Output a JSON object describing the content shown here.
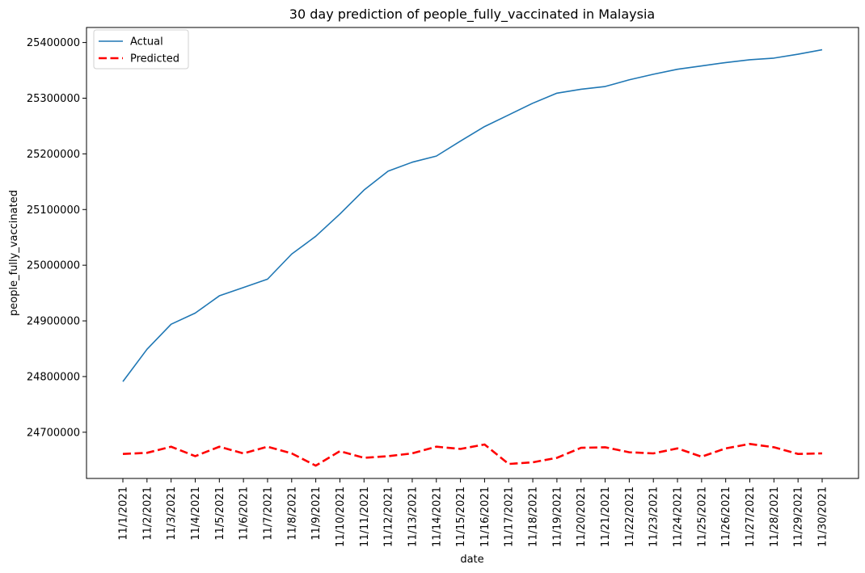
{
  "chart_data": {
    "type": "line",
    "title": "30 day prediction of people_fully_vaccinated in Malaysia",
    "xlabel": "date",
    "ylabel": "people_fully_vaccinated",
    "categories": [
      "11/1/2021",
      "11/2/2021",
      "11/3/2021",
      "11/4/2021",
      "11/5/2021",
      "11/6/2021",
      "11/7/2021",
      "11/8/2021",
      "11/9/2021",
      "11/10/2021",
      "11/11/2021",
      "11/12/2021",
      "11/13/2021",
      "11/14/2021",
      "11/15/2021",
      "11/16/2021",
      "11/17/2021",
      "11/18/2021",
      "11/19/2021",
      "11/20/2021",
      "11/21/2021",
      "11/22/2021",
      "11/23/2021",
      "11/24/2021",
      "11/25/2021",
      "11/26/2021",
      "11/27/2021",
      "11/28/2021",
      "11/29/2021",
      "11/30/2021"
    ],
    "yticks": [
      "24700000",
      "24800000",
      "24900000",
      "25000000",
      "25100000",
      "25200000",
      "25300000",
      "25400000"
    ],
    "ylim": [
      24617000,
      25427000
    ],
    "grid": false,
    "legend_position": "top-left",
    "series": [
      {
        "name": "Actual",
        "color": "#1f77b4",
        "style": "solid",
        "values": [
          24791000,
          24849000,
          24894000,
          24914000,
          24945000,
          24960000,
          24975000,
          25020000,
          25052000,
          25092000,
          25135000,
          25169000,
          25185000,
          25196000,
          25223000,
          25249000,
          25270000,
          25291000,
          25309000,
          25316000,
          25321000,
          25333000,
          25343000,
          25352000,
          25358000,
          25364000,
          25369000,
          25372000,
          25379000,
          25387000
        ]
      },
      {
        "name": "Predicted",
        "color": "#ff0000",
        "style": "dashed",
        "values": [
          24661000,
          24663000,
          24674000,
          24657000,
          24674000,
          24662000,
          24674000,
          24662000,
          24640000,
          24666000,
          24654000,
          24657000,
          24662000,
          24674000,
          24670000,
          24678000,
          24643000,
          24646000,
          24654000,
          24672000,
          24673000,
          24664000,
          24662000,
          24671000,
          24656000,
          24671000,
          24679000,
          24673000,
          24661000,
          24662000
        ]
      }
    ]
  }
}
